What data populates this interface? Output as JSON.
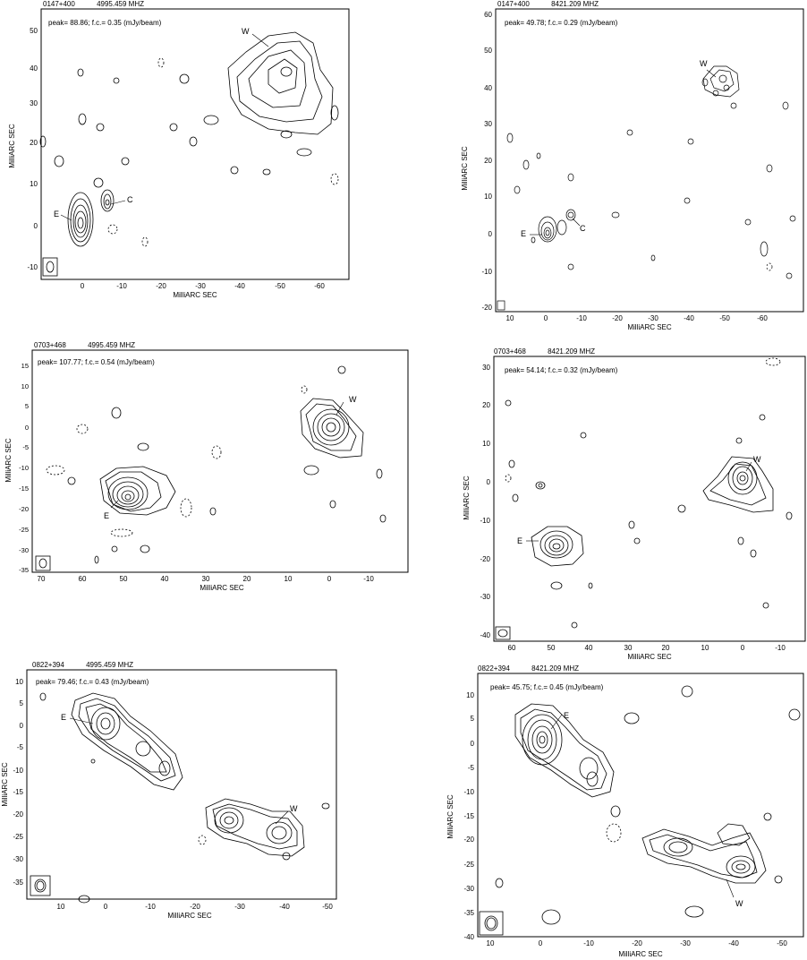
{
  "figure": {
    "axis_unit_label": "MilliARC SEC",
    "panels": [
      {
        "source": "0147+400",
        "frequency": "4995.459 MHZ",
        "annotation": "peak= 88.86;   f.c.= 0.35  (mJy/beam)",
        "xticks": [
          "0",
          "-10",
          "-20",
          "-30",
          "-40",
          "-50",
          "-60"
        ],
        "yticks": [
          "50",
          "40",
          "30",
          "20",
          "10",
          "0",
          "-10"
        ],
        "component_labels": [
          "W",
          "E",
          "C"
        ]
      },
      {
        "source": "0147+400",
        "frequency": "8421.209 MHZ",
        "annotation": "peak= 49.78;   f.c.= 0.29  (mJy/beam)",
        "xticks": [
          "10",
          "0",
          "-10",
          "-20",
          "-30",
          "-40",
          "-50",
          "-60"
        ],
        "yticks": [
          "60",
          "50",
          "40",
          "30",
          "20",
          "10",
          "0",
          "-10",
          "-20"
        ],
        "component_labels": [
          "W",
          "E",
          "C"
        ]
      },
      {
        "source": "0703+468",
        "frequency": "4995.459 MHZ",
        "annotation": "peak= 107.77;   f.c.= 0.54  (mJy/beam)",
        "xticks": [
          "70",
          "60",
          "50",
          "40",
          "30",
          "20",
          "10",
          "0",
          "-10"
        ],
        "yticks": [
          "15",
          "10",
          "5",
          "0",
          "-5",
          "-10",
          "-15",
          "-20",
          "-25",
          "-30",
          "-35"
        ],
        "component_labels": [
          "W",
          "E"
        ]
      },
      {
        "source": "0703+468",
        "frequency": "8421.209 MHZ",
        "annotation": "peak= 54.14;   f.c.= 0.32  (mJy/beam)",
        "xticks": [
          "60",
          "50",
          "40",
          "30",
          "20",
          "10",
          "0",
          "-10"
        ],
        "yticks": [
          "30",
          "20",
          "10",
          "0",
          "-10",
          "-20",
          "-30",
          "-40"
        ],
        "component_labels": [
          "W",
          "E"
        ]
      },
      {
        "source": "0822+394",
        "frequency": "4995.459 MHZ",
        "annotation": "peak= 79.46;   f.c.= 0.43  (mJy/beam)",
        "xticks": [
          "10",
          "0",
          "-10",
          "-20",
          "-30",
          "-40",
          "-50"
        ],
        "yticks": [
          "10",
          "5",
          "0",
          "-5",
          "-10",
          "-15",
          "-20",
          "-25",
          "-30",
          "-35"
        ],
        "component_labels": [
          "E",
          "W"
        ]
      },
      {
        "source": "0822+394",
        "frequency": "8421.209 MHZ",
        "annotation": "peak= 45.75;   f.c.= 0.45  (mJy/beam)",
        "xticks": [
          "10",
          "0",
          "-10",
          "-20",
          "-30",
          "-40",
          "-50"
        ],
        "yticks": [
          "10",
          "5",
          "0",
          "-5",
          "-10",
          "-15",
          "-20",
          "-25",
          "-30",
          "-35",
          "-40"
        ],
        "component_labels": [
          "E",
          "W"
        ]
      }
    ]
  }
}
